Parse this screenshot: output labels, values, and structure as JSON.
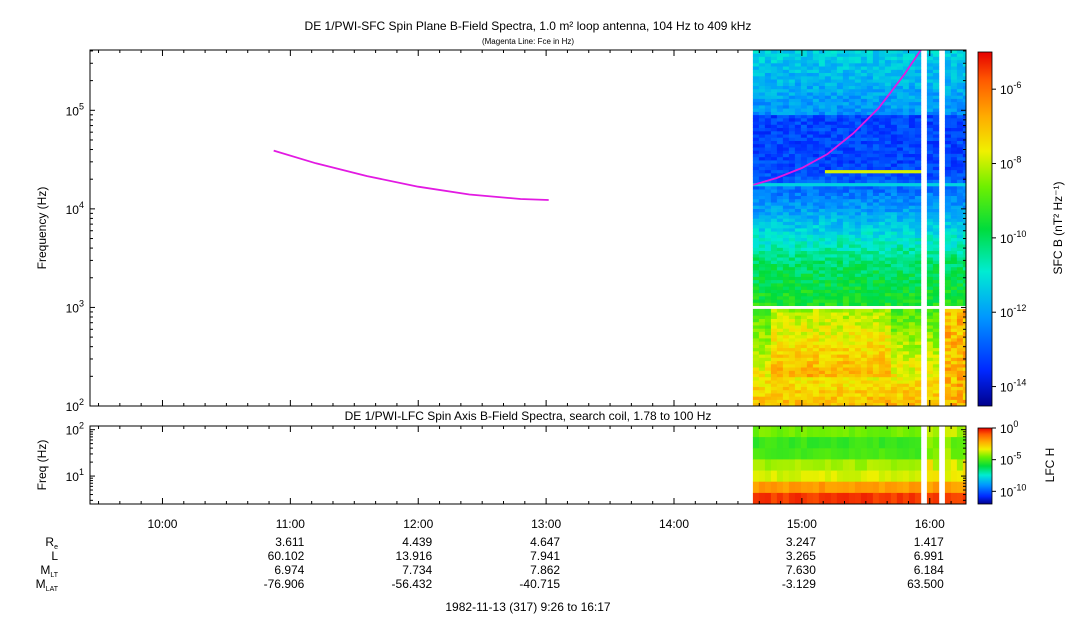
{
  "chart_data": [
    {
      "type": "heatmap",
      "title": "DE 1/PWI-SFC  Spin Plane B-Field Spectra, 1.0 m² loop antenna, 104 Hz to 409 kHz",
      "subtitle": "(Magenta Line: Fce in Hz)",
      "ylabel": "Frequency (Hz)",
      "yscale": "log",
      "ylim": [
        100,
        409000
      ],
      "y_ticks": [
        {
          "value": 100,
          "label": "10",
          "exp": "2"
        },
        {
          "value": 1000,
          "label": "10",
          "exp": "3"
        },
        {
          "value": 10000,
          "label": "10",
          "exp": "4"
        },
        {
          "value": 100000,
          "label": "10",
          "exp": "5"
        }
      ],
      "xlim": [
        9.4333,
        16.2833
      ],
      "data_extent": [
        14.617,
        16.283
      ],
      "data_gaps": [
        [
          15.93,
          15.98
        ],
        [
          16.08,
          16.12
        ]
      ],
      "fce_line": {
        "segments": [
          {
            "x": [
              10.87,
              11.2,
              11.6,
              12.0,
              12.4,
              12.8,
              13.02
            ],
            "y": [
              39000,
              29000,
              21500,
              16800,
              14000,
              12600,
              12300
            ]
          },
          {
            "x": [
              14.62,
              14.8,
              15.0,
              15.2,
              15.4,
              15.6,
              15.8,
              15.93
            ],
            "y": [
              17500,
              20500,
              26000,
              36000,
              58000,
              105000,
              230000,
              409000
            ]
          }
        ],
        "color": "#e21ae2"
      },
      "colorbar": {
        "label": "SFC B (nT² Hz⁻¹)",
        "scale": "log",
        "range": [
          3e-15,
          1e-05
        ],
        "ticks": [
          {
            "value": 1e-06,
            "label": "10",
            "exp": "-6"
          },
          {
            "value": 1e-08,
            "label": "10",
            "exp": "-8"
          },
          {
            "value": 1e-10,
            "label": "10",
            "exp": "-10"
          },
          {
            "value": 1e-12,
            "label": "10",
            "exp": "-12"
          },
          {
            "value": 1e-14,
            "label": "10",
            "exp": "-14"
          }
        ]
      }
    },
    {
      "type": "heatmap",
      "title": "DE 1/PWI-LFC  Spin Axis B-Field Spectra, search coil, 1.78 to 100 Hz",
      "ylabel": "Freq (Hz)",
      "yscale": "log",
      "ylim": [
        2.5,
        120
      ],
      "y_ticks": [
        {
          "value": 10,
          "label": "10",
          "exp": "1"
        },
        {
          "value": 100,
          "label": "10",
          "exp": "2"
        }
      ],
      "xlim": [
        9.4333,
        16.2833
      ],
      "data_extent": [
        14.617,
        16.283
      ],
      "colorbar": {
        "label": "LFC H",
        "scale": "log",
        "range": [
          1e-12,
          1
        ],
        "ticks": [
          {
            "value": 1,
            "label": "10",
            "exp": "0"
          },
          {
            "value": 1e-05,
            "label": "10",
            "exp": "-5"
          },
          {
            "value": 1e-10,
            "label": "10",
            "exp": "-10"
          }
        ]
      }
    }
  ],
  "time_axis": {
    "ticks": [
      {
        "hour": 10,
        "label": "10:00"
      },
      {
        "hour": 11,
        "label": "11:00"
      },
      {
        "hour": 12,
        "label": "12:00"
      },
      {
        "hour": 13,
        "label": "13:00"
      },
      {
        "hour": 14,
        "label": "14:00"
      },
      {
        "hour": 15,
        "label": "15:00"
      },
      {
        "hour": 16,
        "label": "16:00"
      }
    ],
    "ephemeris": [
      {
        "name": "R",
        "sub": "e",
        "values": [
          "",
          "3.611",
          "4.439",
          "4.647",
          "",
          "3.247",
          "1.417"
        ]
      },
      {
        "name": "L",
        "sub": "",
        "values": [
          "",
          "60.102",
          "13.916",
          "7.941",
          "",
          "3.265",
          "6.991"
        ]
      },
      {
        "name": "M",
        "sub": "LT",
        "values": [
          "",
          "6.974",
          "7.734",
          "7.862",
          "",
          "7.630",
          "6.184"
        ]
      },
      {
        "name": "M",
        "sub": "LAT",
        "values": [
          "",
          "-76.906",
          "-56.432",
          "-40.715",
          "",
          "-3.129",
          "63.500"
        ]
      }
    ],
    "footer": "1982-11-13 (317) 9:26 to 16:17"
  }
}
